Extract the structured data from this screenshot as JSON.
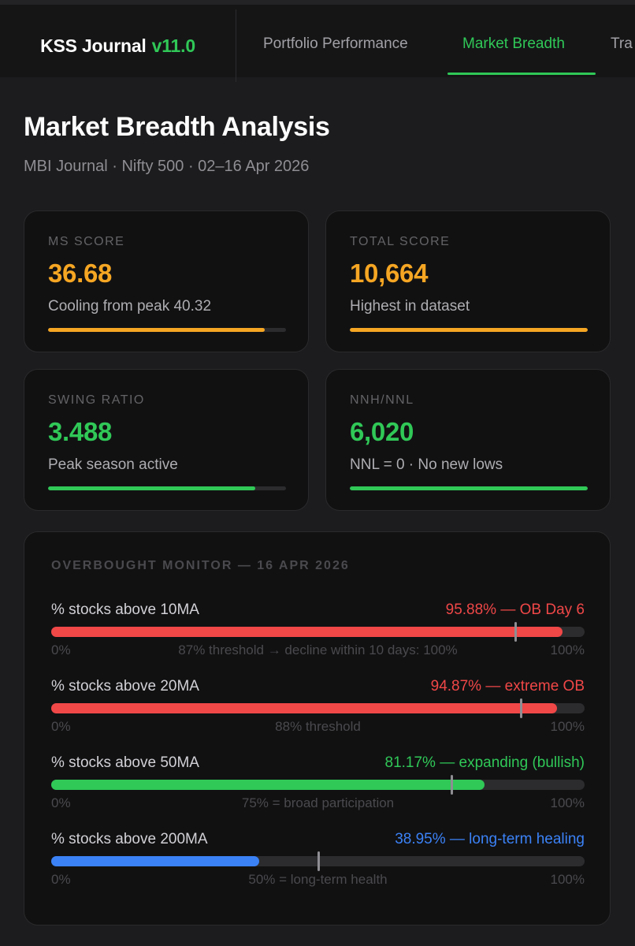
{
  "app": {
    "name": "KSS Journal",
    "version": "v11.0"
  },
  "nav": {
    "tabs": [
      {
        "label": "Portfolio Performance",
        "active": false
      },
      {
        "label": "Market Breadth",
        "active": true
      },
      {
        "label": "Tra",
        "active": false
      }
    ]
  },
  "header": {
    "title": "Market Breadth Analysis",
    "subtitle": "MBI Journal · Nifty 500 · 02–16 Apr 2026"
  },
  "kpis": [
    {
      "label": "MS SCORE",
      "value": "36.68",
      "note": "Cooling from peak 40.32",
      "progress": 0.91,
      "color": "#f5a623"
    },
    {
      "label": "TOTAL SCORE",
      "value": "10,664",
      "note": "Highest in dataset",
      "progress": 1.0,
      "color": "#f5a623"
    },
    {
      "label": "SWING RATIO",
      "value": "3.488",
      "note": "Peak season active",
      "progress": 0.87,
      "color": "#30c857"
    },
    {
      "label": "NNH/NNL",
      "value": "6,020",
      "note": "NNL = 0 · No new lows",
      "progress": 1.0,
      "color": "#30c857"
    }
  ],
  "monitor": {
    "title": "OVERBOUGHT MONITOR — 16 APR 2026",
    "rows": [
      {
        "name": "% stocks above 10MA",
        "status": "95.88% — OB Day 6",
        "value_pct": 95.88,
        "threshold_pct": 87,
        "note": "87% threshold → decline within 10 days: 100%",
        "color": "#f04747",
        "min": "0%",
        "max": "100%"
      },
      {
        "name": "% stocks above 20MA",
        "status": "94.87% — extreme OB",
        "value_pct": 94.87,
        "threshold_pct": 88,
        "note": "88% threshold",
        "color": "#f04747",
        "min": "0%",
        "max": "100%"
      },
      {
        "name": "% stocks above 50MA",
        "status": "81.17% — expanding (bullish)",
        "value_pct": 81.17,
        "threshold_pct": 75,
        "note": "75% = broad participation",
        "color": "#30c857",
        "min": "0%",
        "max": "100%"
      },
      {
        "name": "% stocks above 200MA",
        "status": "38.95% — long-term healing",
        "value_pct": 38.95,
        "threshold_pct": 50,
        "note": "50% = long-term health",
        "color": "#3b82f6",
        "min": "0%",
        "max": "100%"
      }
    ]
  }
}
